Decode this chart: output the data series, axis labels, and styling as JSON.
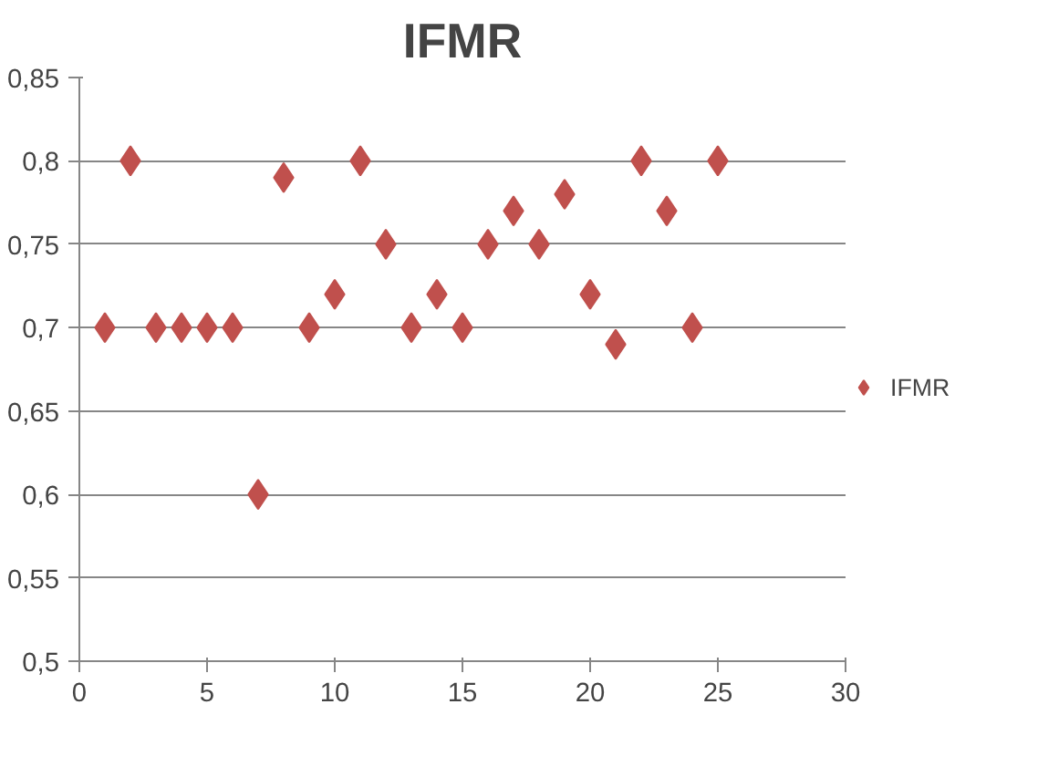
{
  "chart_data": {
    "type": "scatter",
    "title": "IFMR",
    "x": [
      1,
      2,
      3,
      4,
      5,
      6,
      7,
      8,
      9,
      10,
      11,
      12,
      13,
      14,
      15,
      16,
      17,
      18,
      19,
      20,
      21,
      22,
      23,
      24,
      25
    ],
    "series": [
      {
        "name": "IFMR",
        "color": "#c0504d",
        "values": [
          0.7,
          0.8,
          0.7,
          0.7,
          0.7,
          0.7,
          0.6,
          0.79,
          0.7,
          0.72,
          0.8,
          0.75,
          0.7,
          0.72,
          0.7,
          0.75,
          0.77,
          0.75,
          0.78,
          0.72,
          0.69,
          0.8,
          0.77,
          0.7,
          0.8
        ]
      }
    ],
    "xlim": [
      0,
      30
    ],
    "xticks": [
      0,
      5,
      10,
      15,
      20,
      25,
      30
    ],
    "ylim": [
      0.5,
      0.85
    ],
    "yticks": [
      {
        "value": 0.5,
        "label": "0,5"
      },
      {
        "value": 0.55,
        "label": "0,55"
      },
      {
        "value": 0.6,
        "label": "0,6"
      },
      {
        "value": 0.65,
        "label": "0,65"
      },
      {
        "value": 0.7,
        "label": "0,7"
      },
      {
        "value": 0.75,
        "label": "0,75"
      },
      {
        "value": 0.8,
        "label": "0,8"
      },
      {
        "value": 0.85,
        "label": "0,85"
      }
    ],
    "grid": "y",
    "legend": "right",
    "marker": "diamond"
  }
}
